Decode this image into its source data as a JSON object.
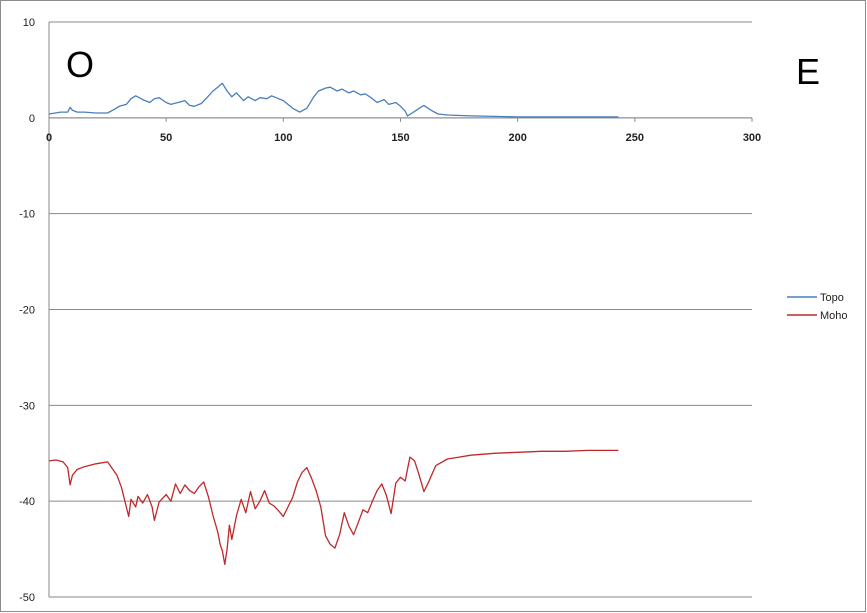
{
  "chart_data": {
    "type": "line",
    "title": "",
    "xlabel": "",
    "ylabel": "",
    "xlim": [
      0,
      300
    ],
    "ylim": [
      -50,
      10
    ],
    "x_ticks": [
      0,
      50,
      100,
      150,
      200,
      250,
      300
    ],
    "y_ticks": [
      10,
      0,
      -10,
      -20,
      -30,
      -40,
      -50
    ],
    "grid": "horizontal",
    "legend_position": "right",
    "annotations": [
      {
        "text": "O",
        "location": "top-left"
      },
      {
        "text": "E",
        "location": "top-right"
      }
    ],
    "series": [
      {
        "name": "Topo",
        "color": "#4a7ebb",
        "points": [
          [
            0,
            0.4
          ],
          [
            5,
            0.6
          ],
          [
            8,
            0.6
          ],
          [
            9,
            1.1
          ],
          [
            10,
            0.8
          ],
          [
            12,
            0.6
          ],
          [
            15,
            0.6
          ],
          [
            20,
            0.5
          ],
          [
            25,
            0.5
          ],
          [
            28,
            0.9
          ],
          [
            30,
            1.2
          ],
          [
            33,
            1.4
          ],
          [
            35,
            2.0
          ],
          [
            37,
            2.3
          ],
          [
            40,
            1.9
          ],
          [
            43,
            1.6
          ],
          [
            45,
            2.0
          ],
          [
            47,
            2.1
          ],
          [
            50,
            1.6
          ],
          [
            52,
            1.4
          ],
          [
            55,
            1.6
          ],
          [
            58,
            1.8
          ],
          [
            60,
            1.3
          ],
          [
            62,
            1.2
          ],
          [
            65,
            1.5
          ],
          [
            67,
            2.0
          ],
          [
            70,
            2.8
          ],
          [
            72,
            3.2
          ],
          [
            74,
            3.6
          ],
          [
            76,
            2.8
          ],
          [
            78,
            2.2
          ],
          [
            80,
            2.6
          ],
          [
            83,
            1.8
          ],
          [
            85,
            2.2
          ],
          [
            88,
            1.8
          ],
          [
            90,
            2.1
          ],
          [
            93,
            2.0
          ],
          [
            95,
            2.3
          ],
          [
            98,
            2.0
          ],
          [
            100,
            1.8
          ],
          [
            102,
            1.4
          ],
          [
            104,
            1.0
          ],
          [
            107,
            0.6
          ],
          [
            110,
            1.0
          ],
          [
            113,
            2.2
          ],
          [
            115,
            2.8
          ],
          [
            118,
            3.1
          ],
          [
            120,
            3.2
          ],
          [
            123,
            2.8
          ],
          [
            125,
            3.0
          ],
          [
            128,
            2.6
          ],
          [
            130,
            2.8
          ],
          [
            133,
            2.4
          ],
          [
            135,
            2.5
          ],
          [
            138,
            2.0
          ],
          [
            140,
            1.6
          ],
          [
            143,
            1.9
          ],
          [
            145,
            1.4
          ],
          [
            148,
            1.6
          ],
          [
            150,
            1.2
          ],
          [
            152,
            0.7
          ],
          [
            153,
            0.2
          ],
          [
            155,
            0.5
          ],
          [
            158,
            1.0
          ],
          [
            160,
            1.3
          ],
          [
            163,
            0.8
          ],
          [
            166,
            0.4
          ],
          [
            170,
            0.3
          ],
          [
            180,
            0.2
          ],
          [
            190,
            0.15
          ],
          [
            200,
            0.1
          ],
          [
            210,
            0.1
          ],
          [
            220,
            0.1
          ],
          [
            230,
            0.1
          ],
          [
            243,
            0.1
          ]
        ]
      },
      {
        "name": "Moho",
        "color": "#c0282a",
        "points": [
          [
            0,
            -35.8
          ],
          [
            3,
            -35.7
          ],
          [
            6,
            -35.9
          ],
          [
            8,
            -36.5
          ],
          [
            9,
            -38.3
          ],
          [
            10,
            -37.3
          ],
          [
            12,
            -36.7
          ],
          [
            15,
            -36.4
          ],
          [
            20,
            -36.1
          ],
          [
            25,
            -35.9
          ],
          [
            27,
            -36.6
          ],
          [
            29,
            -37.3
          ],
          [
            31,
            -38.6
          ],
          [
            33,
            -40.6
          ],
          [
            34,
            -41.6
          ],
          [
            35,
            -39.8
          ],
          [
            37,
            -40.6
          ],
          [
            38,
            -39.5
          ],
          [
            40,
            -40.2
          ],
          [
            42,
            -39.3
          ],
          [
            44,
            -40.6
          ],
          [
            45,
            -42.0
          ],
          [
            47,
            -40.1
          ],
          [
            50,
            -39.3
          ],
          [
            52,
            -40.0
          ],
          [
            54,
            -38.2
          ],
          [
            56,
            -39.2
          ],
          [
            58,
            -38.3
          ],
          [
            60,
            -38.9
          ],
          [
            62,
            -39.2
          ],
          [
            64,
            -38.5
          ],
          [
            66,
            -38.0
          ],
          [
            68,
            -39.5
          ],
          [
            70,
            -41.5
          ],
          [
            72,
            -43.2
          ],
          [
            73,
            -44.5
          ],
          [
            74,
            -45.2
          ],
          [
            75,
            -46.6
          ],
          [
            76,
            -45.0
          ],
          [
            77,
            -42.5
          ],
          [
            78,
            -44.0
          ],
          [
            80,
            -41.5
          ],
          [
            82,
            -39.8
          ],
          [
            84,
            -41.2
          ],
          [
            86,
            -39.0
          ],
          [
            88,
            -40.8
          ],
          [
            90,
            -40.0
          ],
          [
            92,
            -38.9
          ],
          [
            94,
            -40.2
          ],
          [
            96,
            -40.5
          ],
          [
            98,
            -41.0
          ],
          [
            100,
            -41.6
          ],
          [
            102,
            -40.6
          ],
          [
            104,
            -39.6
          ],
          [
            106,
            -38.0
          ],
          [
            108,
            -37.0
          ],
          [
            110,
            -36.5
          ],
          [
            112,
            -37.6
          ],
          [
            114,
            -38.9
          ],
          [
            116,
            -40.6
          ],
          [
            118,
            -43.6
          ],
          [
            120,
            -44.5
          ],
          [
            122,
            -44.9
          ],
          [
            124,
            -43.5
          ],
          [
            126,
            -41.2
          ],
          [
            128,
            -42.6
          ],
          [
            130,
            -43.5
          ],
          [
            132,
            -42.2
          ],
          [
            134,
            -40.9
          ],
          [
            136,
            -41.2
          ],
          [
            138,
            -40.0
          ],
          [
            140,
            -38.9
          ],
          [
            142,
            -38.2
          ],
          [
            144,
            -39.4
          ],
          [
            146,
            -41.3
          ],
          [
            148,
            -38.1
          ],
          [
            150,
            -37.5
          ],
          [
            152,
            -37.9
          ],
          [
            154,
            -35.4
          ],
          [
            156,
            -35.8
          ],
          [
            158,
            -37.3
          ],
          [
            160,
            -39.0
          ],
          [
            162,
            -38.0
          ],
          [
            165,
            -36.3
          ],
          [
            170,
            -35.6
          ],
          [
            175,
            -35.4
          ],
          [
            180,
            -35.2
          ],
          [
            190,
            -35.0
          ],
          [
            200,
            -34.9
          ],
          [
            210,
            -34.8
          ],
          [
            220,
            -34.8
          ],
          [
            230,
            -34.7
          ],
          [
            243,
            -34.7
          ]
        ]
      }
    ]
  }
}
